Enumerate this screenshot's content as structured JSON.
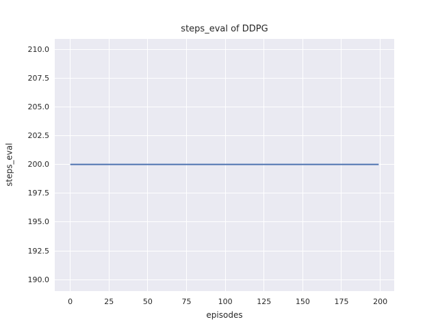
{
  "chart_data": {
    "type": "line",
    "title": "steps_eval of DDPG",
    "xlabel": "episodes",
    "ylabel": "steps_eval",
    "x_ticks": [
      0,
      25,
      50,
      75,
      100,
      125,
      150,
      175,
      200
    ],
    "x_tick_decimals": 0,
    "y_ticks": [
      210.0,
      207.5,
      205.0,
      202.5,
      200.0,
      197.5,
      195.0,
      192.5,
      190.0
    ],
    "y_tick_decimals": 1,
    "xlim": [
      -10,
      209
    ],
    "ylim": [
      189.0,
      210.9
    ],
    "grid": true,
    "legend": false,
    "plot_background": "#eaeaf2",
    "grid_color": "#ffffff",
    "text_color": "#262626",
    "series": [
      {
        "name": "steps_eval",
        "color": "#4c72b0",
        "line_width": 2,
        "constant_y": 200.0,
        "points": [
          [
            0,
            200.0
          ],
          [
            199,
            200.0
          ]
        ]
      }
    ]
  }
}
